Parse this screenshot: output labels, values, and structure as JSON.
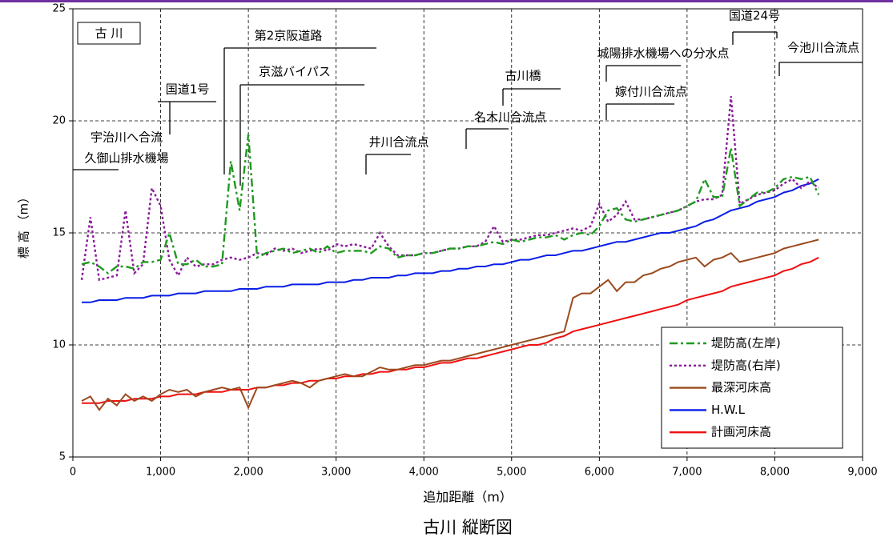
{
  "chart_data": {
    "type": "line",
    "title": "古川 縦断図",
    "x_label": "追加距離（m）",
    "y_label": "標 高 （m）",
    "annotations": [
      "古 川",
      "第2京阪道路",
      "京滋バイパス",
      "国道1号",
      "宇治川へ合流",
      "久御山排水機場",
      "井川合流点",
      "名木川合流点",
      "古川橋",
      "城陽排水機場への分水点",
      "嫁付川合流点",
      "国道24号",
      "今池川合流点"
    ],
    "xlim": [
      0,
      9000
    ],
    "xticks": [
      0,
      {
        "value": 1000,
        "label": "1,000"
      },
      {
        "value": 2000,
        "label": "2,000"
      },
      {
        "value": 3000,
        "label": "3,000"
      },
      {
        "value": 4000,
        "label": "4,000"
      },
      {
        "value": 5000,
        "label": "5,000"
      },
      {
        "value": 6000,
        "label": "6,000"
      },
      {
        "value": 7000,
        "label": "7,000"
      },
      {
        "value": 8000,
        "label": "8,000"
      },
      {
        "value": 9000,
        "label": "9,000"
      }
    ],
    "ylim": [
      5,
      25
    ],
    "yticks": [
      5,
      10,
      15,
      20,
      25
    ],
    "grid": true,
    "legend": "lower right",
    "x": [
      100,
      200,
      300,
      400,
      500,
      600,
      700,
      800,
      900,
      1000,
      1100,
      1200,
      1300,
      1400,
      1500,
      1600,
      1700,
      1800,
      1900,
      2000,
      2100,
      2200,
      2300,
      2400,
      2500,
      2600,
      2700,
      2800,
      2900,
      3000,
      3100,
      3200,
      3300,
      3400,
      3500,
      3600,
      3700,
      3800,
      3900,
      4000,
      4100,
      4200,
      4300,
      4400,
      4500,
      4600,
      4700,
      4800,
      4900,
      5000,
      5100,
      5200,
      5300,
      5400,
      5500,
      5600,
      5700,
      5800,
      5900,
      6000,
      6100,
      6200,
      6300,
      6400,
      6500,
      6600,
      6700,
      6800,
      6900,
      7000,
      7100,
      7200,
      7300,
      7400,
      7500,
      7600,
      7700,
      7800,
      7900,
      8000,
      8100,
      8200,
      8300,
      8400,
      8500
    ],
    "series": [
      {
        "name": "堤防高(左岸)",
        "color": "#1f9a1f",
        "style": "dashdot",
        "values": [
          13.6,
          13.7,
          13.5,
          13.2,
          13.5,
          13.5,
          13.4,
          13.7,
          13.7,
          13.8,
          15.0,
          13.6,
          13.6,
          13.8,
          13.5,
          13.5,
          13.6,
          18.2,
          16.0,
          19.4,
          13.9,
          14.1,
          14.2,
          14.3,
          14.1,
          14.2,
          14.3,
          14.1,
          14.4,
          14.1,
          14.2,
          14.2,
          14.2,
          14.1,
          14.4,
          14.3,
          13.9,
          14.0,
          14.0,
          14.1,
          14.1,
          14.2,
          14.3,
          14.3,
          14.4,
          14.4,
          14.5,
          14.6,
          14.5,
          14.7,
          14.6,
          14.7,
          14.8,
          14.8,
          14.9,
          14.7,
          14.9,
          15.0,
          14.9,
          15.3,
          16.0,
          16.1,
          15.6,
          15.5,
          15.6,
          15.7,
          15.8,
          15.9,
          16.0,
          16.2,
          16.4,
          17.4,
          16.6,
          16.6,
          18.8,
          16.2,
          16.5,
          16.8,
          16.8,
          17.0,
          17.4,
          17.5,
          17.4,
          17.5,
          16.7
        ]
      },
      {
        "name": "堤防高(右岸)",
        "color": "#8b1a9b",
        "style": "dotted",
        "values": [
          12.9,
          15.7,
          12.9,
          13.0,
          13.1,
          16.0,
          13.2,
          13.6,
          17.0,
          16.2,
          13.8,
          13.1,
          13.9,
          13.5,
          13.6,
          13.6,
          13.8,
          13.9,
          13.8,
          13.9,
          14.1,
          14.0,
          14.3,
          14.2,
          14.3,
          14.1,
          14.2,
          14.3,
          14.2,
          14.5,
          14.4,
          14.5,
          14.4,
          14.3,
          15.0,
          14.4,
          14.0,
          14.0,
          14.0,
          14.1,
          14.1,
          14.2,
          14.3,
          14.3,
          14.4,
          14.4,
          14.6,
          15.3,
          14.6,
          14.7,
          14.7,
          14.8,
          14.9,
          14.9,
          15.0,
          15.1,
          15.2,
          15.1,
          15.3,
          16.3,
          15.5,
          15.8,
          16.4,
          15.6,
          15.6,
          15.7,
          15.8,
          15.9,
          16.0,
          16.2,
          16.4,
          16.5,
          16.5,
          16.7,
          21.1,
          16.3,
          16.5,
          16.7,
          16.8,
          16.9,
          17.2,
          17.4,
          17.0,
          17.3,
          17.0
        ]
      },
      {
        "name": "最深河床高",
        "color": "#9b4a1e",
        "style": "solid",
        "values": [
          7.5,
          7.7,
          7.1,
          7.6,
          7.3,
          7.8,
          7.5,
          7.7,
          7.5,
          7.8,
          8.0,
          7.9,
          8.0,
          7.7,
          7.9,
          8.0,
          8.1,
          8.0,
          8.1,
          7.2,
          8.1,
          8.1,
          8.2,
          8.3,
          8.4,
          8.3,
          8.1,
          8.4,
          8.5,
          8.6,
          8.7,
          8.6,
          8.6,
          8.8,
          9.0,
          8.9,
          8.9,
          9.0,
          9.1,
          9.1,
          9.2,
          9.3,
          9.3,
          9.4,
          9.5,
          9.6,
          9.7,
          9.8,
          9.9,
          10.0,
          10.1,
          10.2,
          10.3,
          10.4,
          10.5,
          10.6,
          12.1,
          12.3,
          12.3,
          12.6,
          12.9,
          12.4,
          12.8,
          12.8,
          13.1,
          13.2,
          13.4,
          13.5,
          13.7,
          13.8,
          13.9,
          13.5,
          13.8,
          13.9,
          14.1,
          13.7,
          13.8,
          13.9,
          14.0,
          14.1,
          14.3,
          14.4,
          14.5,
          14.6,
          14.7
        ]
      },
      {
        "name": "H.W.L",
        "color": "#0a1fe6",
        "style": "solid",
        "values": [
          11.9,
          11.9,
          12.0,
          12.0,
          12.0,
          12.1,
          12.1,
          12.1,
          12.2,
          12.2,
          12.2,
          12.3,
          12.3,
          12.3,
          12.4,
          12.4,
          12.4,
          12.4,
          12.5,
          12.5,
          12.5,
          12.6,
          12.6,
          12.6,
          12.7,
          12.7,
          12.7,
          12.7,
          12.8,
          12.8,
          12.8,
          12.9,
          12.9,
          13.0,
          13.0,
          13.0,
          13.1,
          13.1,
          13.2,
          13.2,
          13.2,
          13.3,
          13.3,
          13.4,
          13.4,
          13.5,
          13.5,
          13.6,
          13.6,
          13.7,
          13.8,
          13.8,
          13.9,
          14.0,
          14.0,
          14.1,
          14.2,
          14.2,
          14.3,
          14.4,
          14.5,
          14.6,
          14.6,
          14.7,
          14.8,
          14.9,
          15.0,
          15.0,
          15.1,
          15.2,
          15.3,
          15.5,
          15.6,
          15.8,
          16.0,
          16.1,
          16.2,
          16.4,
          16.5,
          16.6,
          16.8,
          16.9,
          17.1,
          17.2,
          17.4
        ]
      },
      {
        "name": "計画河床高",
        "color": "#f01010",
        "style": "solid",
        "values": [
          7.4,
          7.4,
          7.4,
          7.5,
          7.5,
          7.5,
          7.6,
          7.6,
          7.6,
          7.7,
          7.7,
          7.8,
          7.8,
          7.8,
          7.9,
          7.9,
          7.9,
          8.0,
          8.0,
          8.0,
          8.1,
          8.1,
          8.2,
          8.2,
          8.3,
          8.3,
          8.4,
          8.4,
          8.5,
          8.5,
          8.6,
          8.6,
          8.7,
          8.7,
          8.8,
          8.8,
          8.9,
          8.9,
          9.0,
          9.0,
          9.1,
          9.2,
          9.2,
          9.3,
          9.4,
          9.4,
          9.5,
          9.6,
          9.7,
          9.8,
          9.9,
          10.0,
          10.0,
          10.1,
          10.3,
          10.4,
          10.6,
          10.7,
          10.8,
          10.9,
          11.0,
          11.1,
          11.2,
          11.3,
          11.4,
          11.5,
          11.6,
          11.7,
          11.8,
          12.0,
          12.1,
          12.2,
          12.3,
          12.4,
          12.6,
          12.7,
          12.8,
          12.9,
          13.0,
          13.1,
          13.3,
          13.4,
          13.6,
          13.7,
          13.9
        ]
      }
    ]
  }
}
